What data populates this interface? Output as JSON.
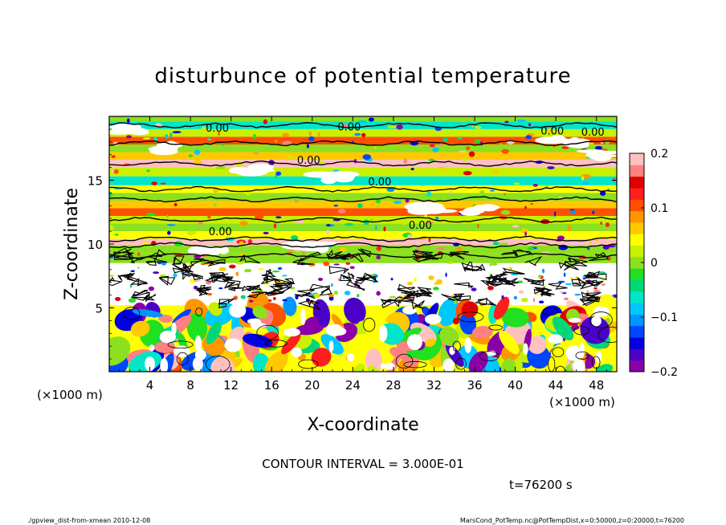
{
  "chart_data": {
    "type": "heatmap",
    "title": "disturbunce of potential temperature",
    "xlabel": "X-coordinate",
    "ylabel": "Z-coordinate",
    "x_unit_left": "(×1000 m)",
    "x_unit_right": "(×1000 m)",
    "xlim": [
      0,
      50
    ],
    "ylim": [
      0,
      20
    ],
    "x_ticks": [
      "4",
      "8",
      "12",
      "16",
      "20",
      "24",
      "28",
      "32",
      "36",
      "40",
      "44",
      "48"
    ],
    "y_ticks": [
      "5",
      "10",
      "15"
    ],
    "colorbar": {
      "min": -0.2,
      "max": 0.2,
      "tick_labels": [
        "0.2",
        "0.1",
        "0",
        "−0.1",
        "−0.2"
      ],
      "colors": [
        "#8a00a8",
        "#4b00c8",
        "#0000e0",
        "#0046ff",
        "#0096ff",
        "#00c8ff",
        "#00e6c8",
        "#00d878",
        "#20e020",
        "#8ce020",
        "#c8f000",
        "#ffff00",
        "#ffc800",
        "#ff9600",
        "#ff5000",
        "#ff1e1e",
        "#e00000",
        "#ff8080",
        "#ffc0c0"
      ]
    },
    "contour_labels": [
      "0.00",
      "0.00",
      "0.00",
      "0.00",
      "0.00",
      "0.00",
      "0.00",
      "0.00"
    ],
    "contour_interval_text": "CONTOUR INTERVAL = 3.000E-01",
    "time_text": "t=76200 s"
  },
  "footer": {
    "left": "./gpview_dist-from-xmean  2010-12-08",
    "right": "MarsCond_PotTemp.nc@PotTempDist,x=0:50000,z=0:20000,t=76200"
  }
}
